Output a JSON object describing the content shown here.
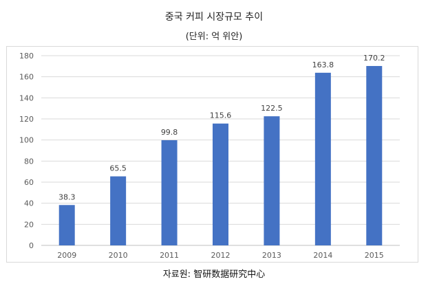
{
  "chart_data": {
    "type": "bar",
    "title": "중국 커피 시장규모 추이",
    "subtitle": "(단위: 억 위안)",
    "categories": [
      "2009",
      "2010",
      "2011",
      "2012",
      "2013",
      "2014",
      "2015"
    ],
    "values": [
      38.3,
      65.5,
      99.8,
      115.6,
      122.5,
      163.8,
      170.2
    ],
    "value_labels": [
      "38.3",
      "65.5",
      "99.8",
      "115.6",
      "122.5",
      "163.8",
      "170.2"
    ],
    "ylim": [
      0,
      180
    ],
    "yticks": [
      0,
      20,
      40,
      60,
      80,
      100,
      120,
      140,
      160,
      180
    ],
    "grid": true,
    "bar_color": "#4472c4",
    "grid_color": "#d9d9d9",
    "legend": "none"
  },
  "source": "자료원: 智研数据研究中心"
}
